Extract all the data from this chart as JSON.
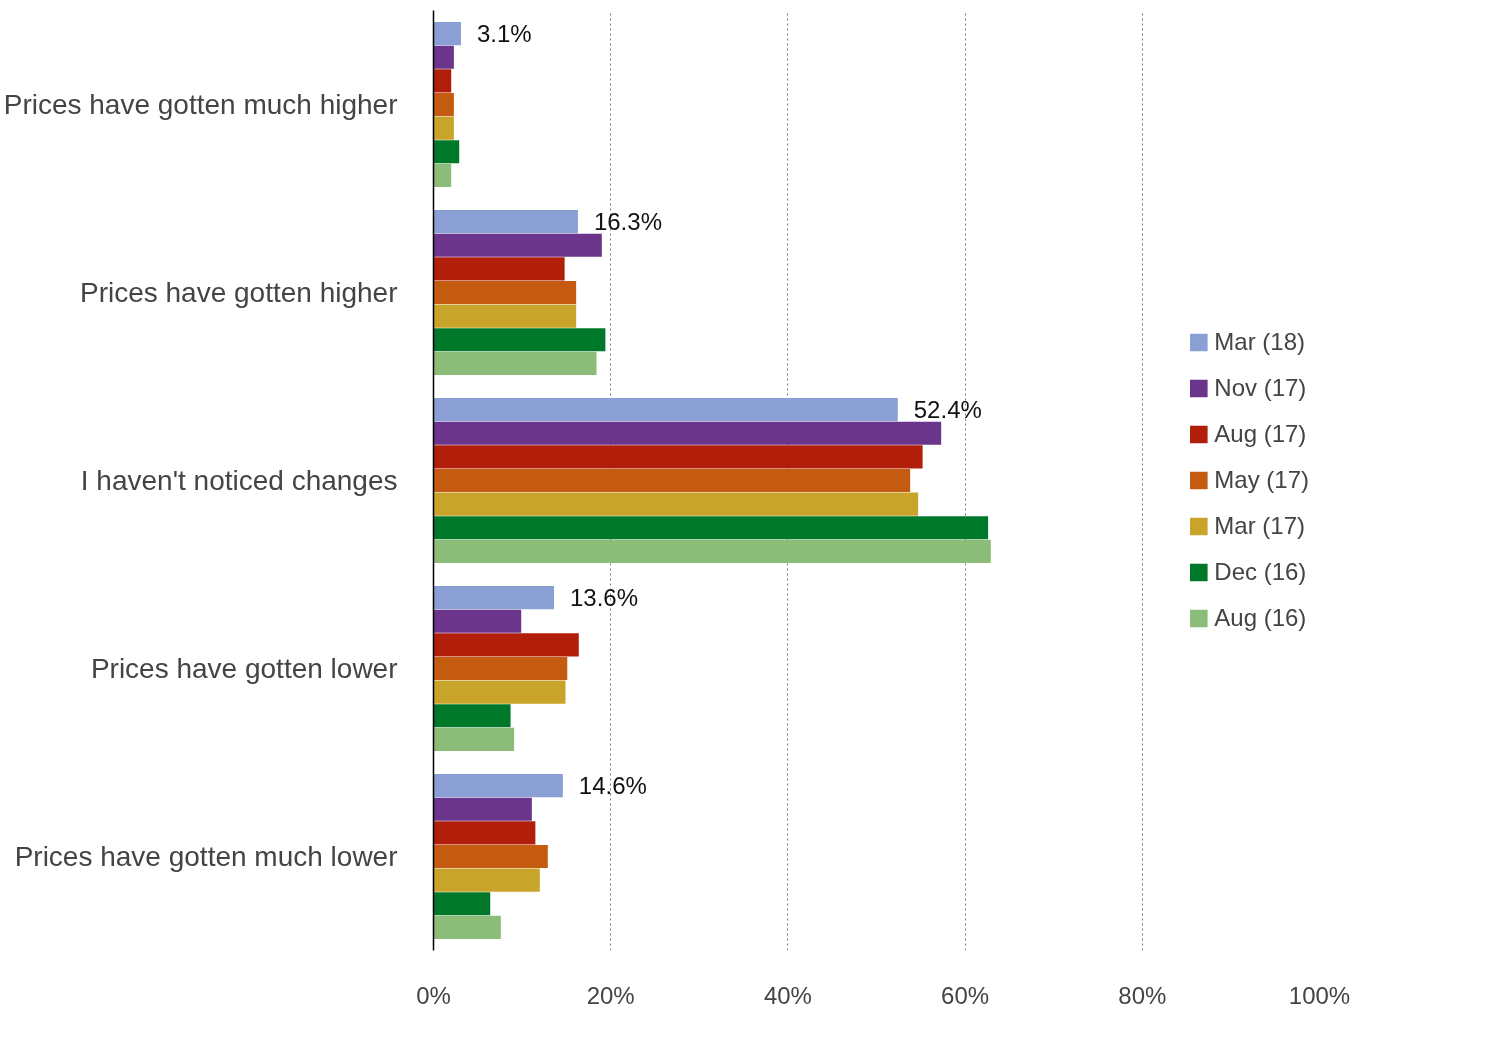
{
  "chart_data": {
    "type": "bar",
    "orientation": "horizontal",
    "categories": [
      "Prices have gotten much higher",
      "Prices have gotten higher",
      "I haven't noticed changes",
      "Prices have gotten lower",
      "Prices have gotten much lower"
    ],
    "series": [
      {
        "name": "Mar (18)",
        "color": "#8a9fd4",
        "values": [
          3.1,
          16.3,
          52.4,
          13.6,
          14.6
        ],
        "value_labels": [
          "3.1%",
          "16.3%",
          "52.4%",
          "13.6%",
          "14.6%"
        ]
      },
      {
        "name": "Nov (17)",
        "color": "#6a358a",
        "values": [
          2.3,
          19.0,
          57.3,
          9.9,
          11.1
        ]
      },
      {
        "name": "Aug (17)",
        "color": "#b11f0a",
        "values": [
          2.0,
          14.8,
          55.2,
          16.4,
          11.5
        ]
      },
      {
        "name": "May (17)",
        "color": "#c55a11",
        "values": [
          2.3,
          16.1,
          53.8,
          15.1,
          12.9
        ]
      },
      {
        "name": "Mar (17)",
        "color": "#c8a52a",
        "values": [
          2.3,
          16.1,
          54.7,
          14.9,
          12.0
        ]
      },
      {
        "name": "Dec (16)",
        "color": "#00782a",
        "values": [
          2.9,
          19.4,
          62.6,
          8.7,
          6.4
        ]
      },
      {
        "name": "Aug (16)",
        "color": "#8bbd78",
        "values": [
          2.0,
          18.4,
          62.9,
          9.1,
          7.6
        ]
      }
    ],
    "xlim": [
      0,
      100
    ],
    "xticks": [
      {
        "value": 0,
        "label": "0%"
      },
      {
        "value": 20,
        "label": "20%"
      },
      {
        "value": 40,
        "label": "40%"
      },
      {
        "value": 60,
        "label": "60%"
      },
      {
        "value": 80,
        "label": "80%"
      },
      {
        "value": 100,
        "label": "100%"
      }
    ],
    "grid": "x",
    "legend": "right"
  }
}
